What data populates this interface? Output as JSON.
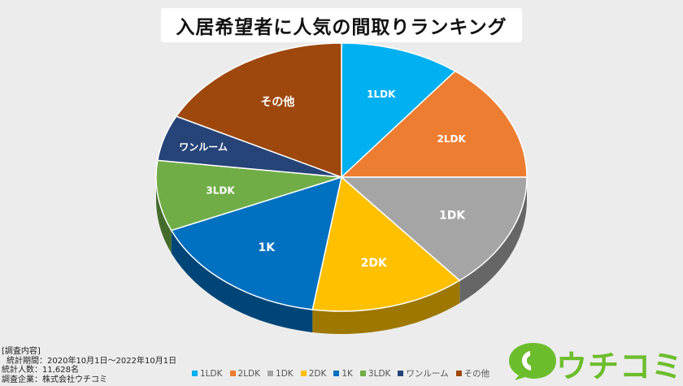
{
  "title": "入居希望者に人気の間取りランキング",
  "survey": {
    "heading": "[調査内容]",
    "period": "統計期間：2020年10月1日～2022年10月1日",
    "count": "統計人数：11,628名",
    "company": "調査企業：株式会社ウチコミ"
  },
  "logo": {
    "text": "ウチコミ!",
    "color": "#6cbd2c",
    "icon": "speech-bubble-icon"
  },
  "chart_data": {
    "type": "pie",
    "title": "入居希望者に人気の間取りランキング",
    "legend_position": "bottom",
    "slices": [
      {
        "label": "1LDK",
        "value": 10.5,
        "color": "#00b0f0"
      },
      {
        "label": "2LDK",
        "value": 14.5,
        "color": "#ed7d31"
      },
      {
        "label": "1DK",
        "value": 14,
        "color": "#a5a5a5"
      },
      {
        "label": "2DK",
        "value": 13.5,
        "color": "#ffc000"
      },
      {
        "label": "1K",
        "value": 16,
        "color": "#0070c0"
      },
      {
        "label": "3LDK",
        "value": 8.5,
        "color": "#70ad47"
      },
      {
        "label": "ワンルーム",
        "value": 5.5,
        "color": "#264478"
      },
      {
        "label": "その他",
        "value": 17.5,
        "color": "#9e480e"
      }
    ]
  }
}
